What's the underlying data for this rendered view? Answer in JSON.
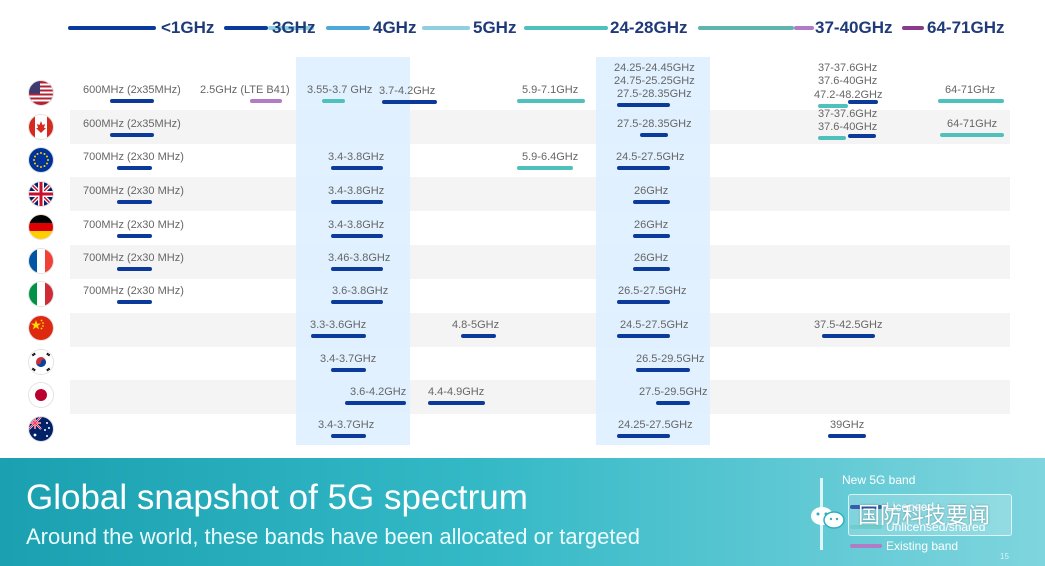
{
  "chart_data": {
    "type": "table",
    "title": "Global snapshot of 5G spectrum",
    "subtitle": "Around the world, these bands have been allocated or targeted",
    "band_headers": [
      "<1GHz",
      "3GHz",
      "4GHz",
      "5GHz",
      "24-28GHz",
      "37-40GHz",
      "64-71GHz"
    ],
    "legend": {
      "title": "New 5G band",
      "items": [
        {
          "label": "Licensed",
          "color": "#0b3a9a"
        },
        {
          "label": "Unlicensed/shared",
          "color": "#4fc1bd"
        },
        {
          "label": "Existing band",
          "color": "#b07cc6"
        }
      ]
    },
    "countries": [
      {
        "name": "United States",
        "flag": "us-flag-icon",
        "bands": [
          "600MHz (2x35MHz)",
          "2.5GHz (LTE B41)",
          "3.55-3.7 GHz",
          "3.7-4.2GHz",
          "5.9-7.1GHz",
          "24.25-24.45GHz",
          "24.75-25.25GHz",
          "27.5-28.35GHz",
          "37-37.6GHz",
          "37.6-40GHz",
          "47.2-48.2GHz",
          "64-71GHz"
        ]
      },
      {
        "name": "Canada",
        "flag": "canada-flag-icon",
        "bands": [
          "600MHz (2x35MHz)",
          "27.5-28.35GHz",
          "37-37.6GHz",
          "37.6-40GHz",
          "64-71GHz"
        ]
      },
      {
        "name": "European Union",
        "flag": "eu-flag-icon",
        "bands": [
          "700MHz (2x30 MHz)",
          "3.4-3.8GHz",
          "5.9-6.4GHz",
          "24.5-27.5GHz"
        ]
      },
      {
        "name": "United Kingdom",
        "flag": "uk-flag-icon",
        "bands": [
          "700MHz (2x30 MHz)",
          "3.4-3.8GHz",
          "26GHz"
        ]
      },
      {
        "name": "Germany",
        "flag": "germany-flag-icon",
        "bands": [
          "700MHz (2x30 MHz)",
          "3.4-3.8GHz",
          "26GHz"
        ]
      },
      {
        "name": "France",
        "flag": "france-flag-icon",
        "bands": [
          "700MHz (2x30 MHz)",
          "3.46-3.8GHz",
          "26GHz"
        ]
      },
      {
        "name": "Italy",
        "flag": "italy-flag-icon",
        "bands": [
          "700MHz (2x30 MHz)",
          "3.6-3.8GHz",
          "26.5-27.5GHz"
        ]
      },
      {
        "name": "China",
        "flag": "china-flag-icon",
        "bands": [
          "3.3-3.6GHz",
          "4.8-5GHz",
          "24.5-27.5GHz",
          "37.5-42.5GHz"
        ]
      },
      {
        "name": "South Korea",
        "flag": "korea-flag-icon",
        "bands": [
          "3.4-3.7GHz",
          "26.5-29.5GHz"
        ]
      },
      {
        "name": "Japan",
        "flag": "japan-flag-icon",
        "bands": [
          "3.6-4.2GHz",
          "4.4-4.9GHz",
          "27.5-29.5GHz"
        ]
      },
      {
        "name": "Australia",
        "flag": "australia-flag-icon",
        "bands": [
          "3.4-3.7GHz",
          "24.25-27.5GHz",
          "39GHz"
        ]
      }
    ]
  },
  "watermark": "国防科技要闻",
  "page_number": "15",
  "colors": {
    "licensed": "#0b3a9a",
    "unlicensed": "#4fc1bd",
    "existing": "#b07cc6",
    "header_text": "#1f3a78",
    "highlight": "#dcefff",
    "footer": "#22a9b8"
  }
}
